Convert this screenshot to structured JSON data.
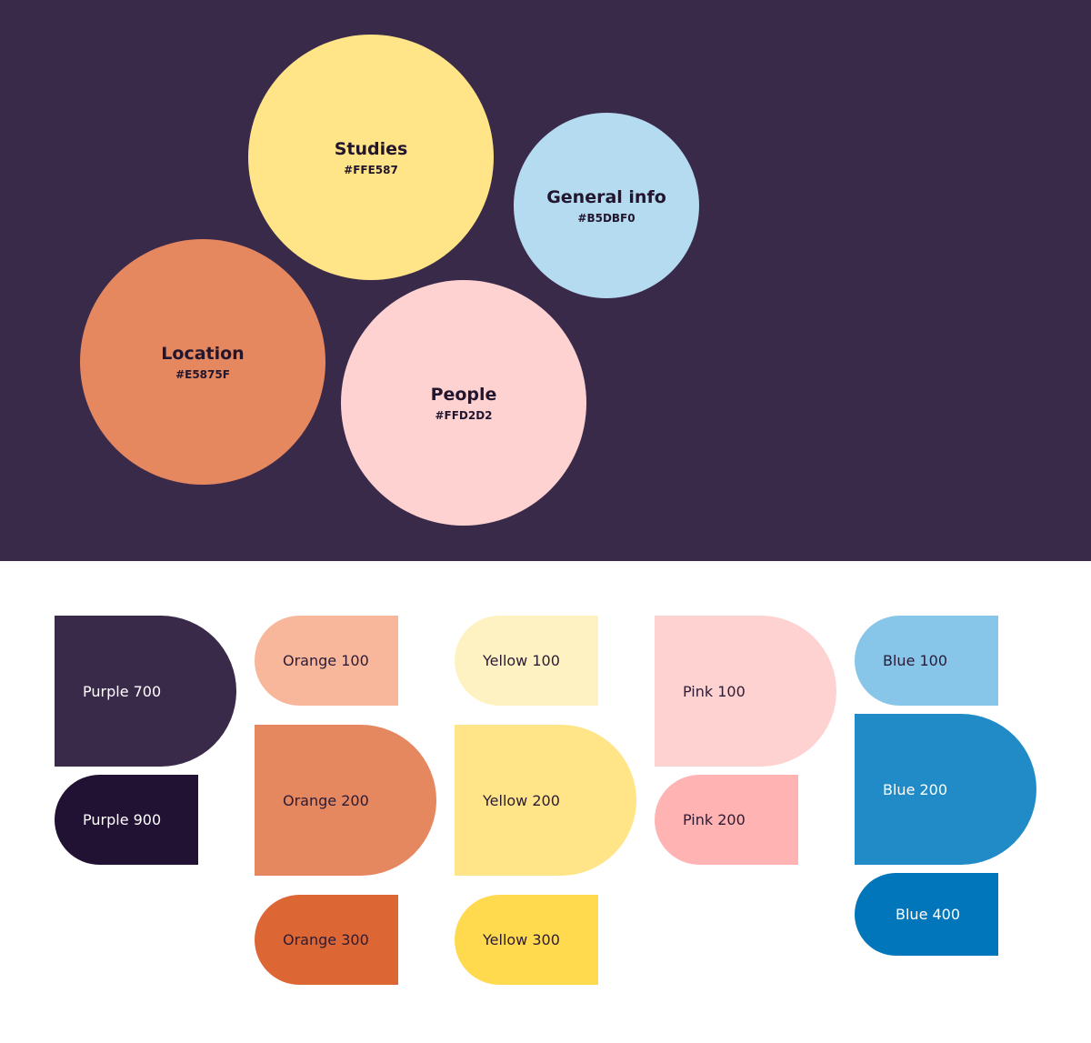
{
  "circles": {
    "studies": {
      "name": "Studies",
      "hex": "#FFE587",
      "color": "#FFE587"
    },
    "general": {
      "name": "General info",
      "hex": "#B5DBF0",
      "color": "#B5DBF0"
    },
    "location": {
      "name": "Location",
      "hex": "#E5875F",
      "color": "#E5875F"
    },
    "people": {
      "name": "People",
      "hex": "#FFD2D2",
      "color": "#FFD2D2"
    }
  },
  "background": {
    "top_color": "#3A2A4A",
    "bottom_color": "#FFFFFF"
  },
  "swatches": {
    "purple700": {
      "label": "Purple 700",
      "color": "#3A2A4A"
    },
    "purple900": {
      "label": "Purple 900",
      "color": "#211133"
    },
    "orange100": {
      "label": "Orange 100",
      "color": "#F8B79B"
    },
    "orange200": {
      "label": "Orange 200",
      "color": "#E5875F"
    },
    "orange300": {
      "label": "Orange 300",
      "color": "#DC6734"
    },
    "yellow100": {
      "label": "Yellow 100",
      "color": "#FEF2C2"
    },
    "yellow200": {
      "label": "Yellow 200",
      "color": "#FFE587"
    },
    "yellow300": {
      "label": "Yellow 300",
      "color": "#FFDA4E"
    },
    "pink100": {
      "label": "Pink 100",
      "color": "#FFD2D2"
    },
    "pink200": {
      "label": "Pink 200",
      "color": "#FFB3B3"
    },
    "blue100": {
      "label": "Blue 100",
      "color": "#87C5E9"
    },
    "blue200": {
      "label": "Blue 200",
      "color": "#218BC8"
    },
    "blue400": {
      "label": "Blue 400",
      "color": "#0276BB"
    }
  }
}
